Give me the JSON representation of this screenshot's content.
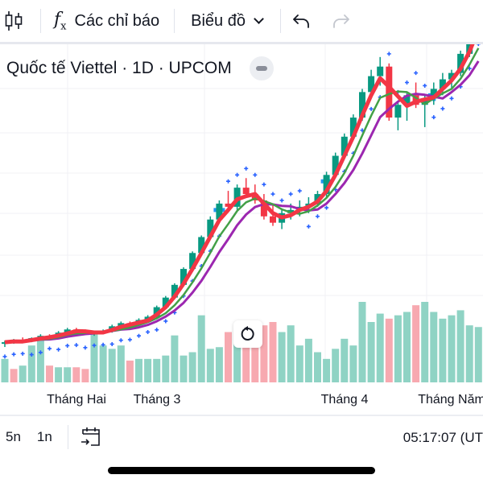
{
  "toolbar": {
    "candles_icon": "candlestick-icon",
    "indicators_label": "Các chỉ báo",
    "indicators_icon": "fx-icon",
    "chart_type_label": "Biểu đồ",
    "undo_icon": "undo-icon",
    "redo_icon": "redo-icon"
  },
  "legend": {
    "title": "Quốc tế Viettel · 1D · UPCOM",
    "collapse_icon": "minus-icon"
  },
  "time_axis": {
    "labels": [
      {
        "text": "Tháng Hai",
        "day": 8
      },
      {
        "text": "Tháng 3",
        "day": 17
      },
      {
        "text": "Tháng 4",
        "day": 38
      },
      {
        "text": "Tháng Năm",
        "day": 50
      }
    ]
  },
  "bottom_bar": {
    "range_5y": "5n",
    "range_1y": "1n",
    "goto_date_icon": "calendar-goto-icon",
    "clock": "05:17:07 (UT"
  },
  "reset_icon": "reset-icon",
  "colors": {
    "up": "#089981",
    "down": "#f23645",
    "vol_up": "#8fd3c4",
    "vol_down": "#f7a9b0",
    "ma_fast": "#f23645",
    "ma_mid": "#43a047",
    "ma_slow": "#9c27b0",
    "sar": "#2962ff",
    "sar_cross": "#2196f3"
  },
  "chart_data": {
    "type": "candlestick",
    "symbol": "Quốc tế Viettel",
    "interval": "1D",
    "exchange": "UPCOM",
    "candles": [
      [
        18,
        19,
        17,
        18.5
      ],
      [
        18.5,
        19.5,
        18,
        19
      ],
      [
        19,
        20,
        18.5,
        18.7
      ],
      [
        18.7,
        20,
        18.5,
        19.8
      ],
      [
        19.8,
        21,
        19.5,
        20.5
      ],
      [
        20.5,
        21,
        19.5,
        19.8
      ],
      [
        19.8,
        22,
        19.5,
        21.5
      ],
      [
        21.5,
        23,
        21,
        22.5
      ],
      [
        22.5,
        23,
        21.5,
        22
      ],
      [
        22,
        22.5,
        21,
        21.2
      ],
      [
        21.2,
        22,
        20.5,
        21.5
      ],
      [
        21.5,
        22.5,
        21,
        22
      ],
      [
        22,
        24,
        21.5,
        23.5
      ],
      [
        23.5,
        25,
        23,
        24.5
      ],
      [
        24.5,
        25,
        23.5,
        24
      ],
      [
        24,
        26,
        23.5,
        25.5
      ],
      [
        25.5,
        27,
        25,
        26.5
      ],
      [
        26.5,
        30,
        26,
        29.5
      ],
      [
        29.5,
        33,
        29,
        32.5
      ],
      [
        32.5,
        37,
        32,
        36.5
      ],
      [
        36.5,
        42,
        36,
        41.5
      ],
      [
        41.5,
        47,
        41,
        46.5
      ],
      [
        46.5,
        52,
        46,
        51.5
      ],
      [
        51.5,
        58,
        51,
        57
      ],
      [
        57,
        63,
        56,
        62
      ],
      [
        62,
        66,
        60,
        61
      ],
      [
        61,
        68,
        60,
        67
      ],
      [
        67,
        70,
        64,
        65
      ],
      [
        65,
        68,
        62,
        63
      ],
      [
        63,
        65,
        57,
        58
      ],
      [
        58,
        62,
        55,
        56
      ],
      [
        56,
        60,
        54,
        59
      ],
      [
        59,
        62,
        57,
        60
      ],
      [
        60,
        63,
        58,
        61
      ],
      [
        61,
        64,
        59,
        62
      ],
      [
        62,
        66,
        61,
        65
      ],
      [
        65,
        72,
        64,
        71
      ],
      [
        71,
        78,
        70,
        77
      ],
      [
        77,
        84,
        76,
        83
      ],
      [
        83,
        90,
        82,
        89
      ],
      [
        89,
        98,
        88,
        97
      ],
      [
        97,
        104,
        95,
        102
      ],
      [
        102,
        108,
        99,
        105
      ],
      [
        105,
        106,
        88,
        89
      ],
      [
        89,
        94,
        85,
        93
      ],
      [
        93,
        97,
        88,
        96
      ],
      [
        96,
        100,
        92,
        93
      ],
      [
        93,
        96,
        86,
        95
      ],
      [
        95,
        100,
        93,
        98
      ],
      [
        98,
        103,
        96,
        101
      ],
      [
        101,
        104,
        98,
        103
      ],
      [
        103,
        110,
        102,
        109
      ],
      [
        109,
        118,
        108,
        117
      ],
      [
        117,
        125,
        116,
        124
      ]
    ],
    "ma": [
      {
        "name": "MA fast",
        "color_key": "ma_fast"
      },
      {
        "name": "MA mid",
        "color_key": "ma_mid"
      },
      {
        "name": "MA slow",
        "color_key": "ma_slow"
      }
    ],
    "volume": [
      14,
      8,
      10,
      22,
      26,
      10,
      9,
      9,
      9,
      8,
      30,
      22,
      20,
      22,
      13,
      14,
      14,
      14,
      16,
      28,
      16,
      18,
      40,
      20,
      21,
      30,
      28,
      32,
      30,
      34,
      36,
      30,
      34,
      22,
      26,
      18,
      14,
      20,
      26,
      22,
      48,
      36,
      41,
      38,
      40,
      42,
      46,
      48,
      42,
      38,
      40,
      43,
      34,
      33
    ],
    "volume_up": [
      1,
      0,
      1,
      1,
      1,
      0,
      1,
      1,
      0,
      0,
      1,
      1,
      1,
      1,
      0,
      1,
      1,
      1,
      1,
      1,
      1,
      1,
      1,
      1,
      1,
      0,
      1,
      0,
      0,
      0,
      0,
      1,
      1,
      1,
      1,
      1,
      1,
      1,
      1,
      1,
      1,
      1,
      1,
      0,
      1,
      1,
      0,
      1,
      1,
      1,
      1,
      1,
      1,
      1
    ]
  }
}
